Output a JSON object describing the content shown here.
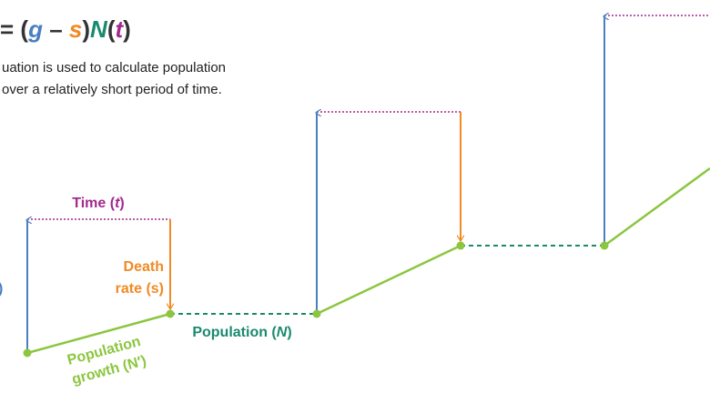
{
  "equation": [
    "= (",
    "g",
    " – ",
    "s",
    ")",
    "N",
    "(",
    "t",
    ")"
  ],
  "description": [
    "uation is used to calculate population",
    "over a relatively short period of time."
  ],
  "growth_rate_label": ")",
  "time_label": [
    "Time (",
    "t",
    ")"
  ],
  "death_rate_label": [
    "Death",
    "rate (s)"
  ],
  "population_label": [
    "Population (",
    "N",
    ")"
  ],
  "population_growth_label": [
    "Population",
    "growth (N′)"
  ]
}
